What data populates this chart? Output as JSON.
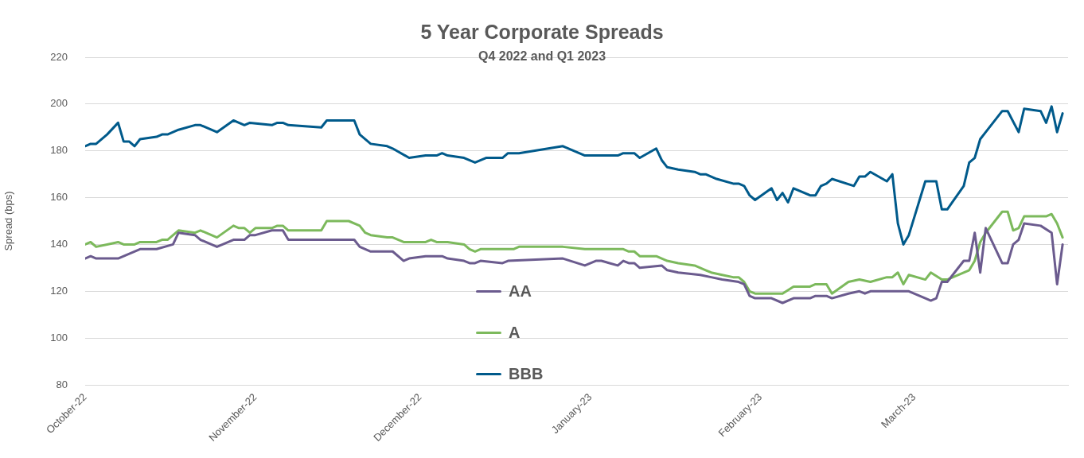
{
  "chart_data": {
    "type": "line",
    "title": "5 Year Corporate Spreads",
    "subtitle": "Q4 2022 and Q1 2023",
    "ylabel": "Spread (bps)",
    "xlim": [
      "2022-10-01",
      "2023-03-29"
    ],
    "xticks": [
      {
        "value": "2022-10-01",
        "label": "October-22"
      },
      {
        "value": "2022-11-01",
        "label": "November-22"
      },
      {
        "value": "2022-12-01",
        "label": "December-22"
      },
      {
        "value": "2023-01-01",
        "label": "January-23"
      },
      {
        "value": "2023-02-01",
        "label": "February-23"
      },
      {
        "value": "2023-03-01",
        "label": "March-23"
      }
    ],
    "ylim": [
      80,
      220
    ],
    "yticks": [
      80,
      100,
      120,
      140,
      160,
      180,
      200,
      220
    ],
    "grid": "y",
    "legend": "bottom",
    "marker": "none",
    "line_style": "solid",
    "series": [
      {
        "name": "AA",
        "color": "#6b5b8e",
        "x": [
          "2022-10-01",
          "2022-10-02",
          "2022-10-03",
          "2022-10-07",
          "2022-10-11",
          "2022-10-14",
          "2022-10-17",
          "2022-10-18",
          "2022-10-21",
          "2022-10-22",
          "2022-10-25",
          "2022-10-28",
          "2022-10-30",
          "2022-10-31",
          "2022-11-01",
          "2022-11-04",
          "2022-11-06",
          "2022-11-07",
          "2022-11-19",
          "2022-11-20",
          "2022-11-22",
          "2022-11-26",
          "2022-11-28",
          "2022-11-29",
          "2022-12-02",
          "2022-12-05",
          "2022-12-06",
          "2022-12-09",
          "2022-12-10",
          "2022-12-11",
          "2022-12-12",
          "2022-12-16",
          "2022-12-17",
          "2022-12-27",
          "2022-12-31",
          "2023-01-02",
          "2023-01-03",
          "2023-01-06",
          "2023-01-07",
          "2023-01-08",
          "2023-01-09",
          "2023-01-10",
          "2023-01-14",
          "2023-01-15",
          "2023-01-17",
          "2023-01-21",
          "2023-01-23",
          "2023-01-25",
          "2023-01-28",
          "2023-01-29",
          "2023-01-30",
          "2023-01-31",
          "2023-02-03",
          "2023-02-05",
          "2023-02-07",
          "2023-02-10",
          "2023-02-11",
          "2023-02-13",
          "2023-02-14",
          "2023-02-17",
          "2023-02-19",
          "2023-02-20",
          "2023-02-21",
          "2023-02-28",
          "2023-03-03",
          "2023-03-04",
          "2023-03-05",
          "2023-03-06",
          "2023-03-07",
          "2023-03-10",
          "2023-03-11",
          "2023-03-12",
          "2023-03-13",
          "2023-03-14",
          "2023-03-17",
          "2023-03-18",
          "2023-03-19",
          "2023-03-20",
          "2023-03-21",
          "2023-03-24",
          "2023-03-26",
          "2023-03-27",
          "2023-03-28"
        ],
        "values": [
          134,
          135,
          134,
          134,
          138,
          138,
          140,
          145,
          144,
          142,
          139,
          142,
          142,
          144,
          144,
          146,
          146,
          142,
          142,
          139,
          137,
          137,
          133,
          134,
          135,
          135,
          134,
          133,
          132,
          132,
          133,
          132,
          133,
          134,
          131,
          133,
          133,
          131,
          133,
          132,
          132,
          130,
          131,
          129,
          128,
          127,
          126,
          125,
          124,
          123,
          118,
          117,
          117,
          115,
          117,
          117,
          118,
          118,
          117,
          119,
          120,
          119,
          120,
          120,
          117,
          116,
          117,
          124,
          124,
          133,
          133,
          145,
          128,
          147,
          132,
          132,
          140,
          142,
          149,
          148,
          145,
          123,
          140
        ]
      },
      {
        "name": "A",
        "color": "#7cb95c",
        "x": [
          "2022-10-01",
          "2022-10-02",
          "2022-10-03",
          "2022-10-05",
          "2022-10-07",
          "2022-10-08",
          "2022-10-10",
          "2022-10-11",
          "2022-10-14",
          "2022-10-15",
          "2022-10-16",
          "2022-10-18",
          "2022-10-21",
          "2022-10-22",
          "2022-10-25",
          "2022-10-28",
          "2022-10-29",
          "2022-10-30",
          "2022-10-31",
          "2022-11-01",
          "2022-11-04",
          "2022-11-05",
          "2022-11-06",
          "2022-11-07",
          "2022-11-13",
          "2022-11-14",
          "2022-11-18",
          "2022-11-20",
          "2022-11-21",
          "2022-11-22",
          "2022-11-25",
          "2022-11-26",
          "2022-11-28",
          "2022-12-02",
          "2022-12-03",
          "2022-12-04",
          "2022-12-06",
          "2022-12-09",
          "2022-12-10",
          "2022-12-11",
          "2022-12-12",
          "2022-12-18",
          "2022-12-19",
          "2022-12-27",
          "2022-12-31",
          "2023-01-07",
          "2023-01-08",
          "2023-01-09",
          "2023-01-10",
          "2023-01-13",
          "2023-01-15",
          "2023-01-17",
          "2023-01-20",
          "2023-01-22",
          "2023-01-23",
          "2023-01-25",
          "2023-01-27",
          "2023-01-28",
          "2023-01-29",
          "2023-01-30",
          "2023-01-31",
          "2023-02-04",
          "2023-02-05",
          "2023-02-07",
          "2023-02-10",
          "2023-02-11",
          "2023-02-13",
          "2023-02-14",
          "2023-02-17",
          "2023-02-19",
          "2023-02-21",
          "2023-02-24",
          "2023-02-25",
          "2023-02-26",
          "2023-02-27",
          "2023-02-28",
          "2023-03-03",
          "2023-03-04",
          "2023-03-06",
          "2023-03-07",
          "2023-03-11",
          "2023-03-12",
          "2023-03-13",
          "2023-03-14",
          "2023-03-17",
          "2023-03-18",
          "2023-03-19",
          "2023-03-20",
          "2023-03-21",
          "2023-03-25",
          "2023-03-26",
          "2023-03-27",
          "2023-03-28"
        ],
        "values": [
          140,
          141,
          139,
          140,
          141,
          140,
          140,
          141,
          141,
          142,
          142,
          146,
          145,
          146,
          143,
          148,
          147,
          147,
          145,
          147,
          147,
          148,
          148,
          146,
          146,
          150,
          150,
          148,
          145,
          144,
          143,
          143,
          141,
          141,
          142,
          141,
          141,
          140,
          138,
          137,
          138,
          138,
          139,
          139,
          138,
          138,
          137,
          137,
          135,
          135,
          133,
          132,
          131,
          129,
          128,
          127,
          126,
          126,
          124,
          120,
          119,
          119,
          119,
          122,
          122,
          123,
          123,
          119,
          124,
          125,
          124,
          126,
          126,
          128,
          123,
          127,
          125,
          128,
          125,
          125,
          129,
          133,
          141,
          145,
          154,
          154,
          146,
          147,
          152,
          152,
          153,
          149,
          143
        ]
      },
      {
        "name": "BBB",
        "color": "#005a8b",
        "x": [
          "2022-10-01",
          "2022-10-02",
          "2022-10-03",
          "2022-10-05",
          "2022-10-07",
          "2022-10-08",
          "2022-10-09",
          "2022-10-10",
          "2022-10-11",
          "2022-10-14",
          "2022-10-15",
          "2022-10-16",
          "2022-10-18",
          "2022-10-21",
          "2022-10-22",
          "2022-10-25",
          "2022-10-28",
          "2022-10-30",
          "2022-10-31",
          "2022-11-04",
          "2022-11-05",
          "2022-11-06",
          "2022-11-07",
          "2022-11-13",
          "2022-11-14",
          "2022-11-19",
          "2022-11-20",
          "2022-11-22",
          "2022-11-25",
          "2022-11-26",
          "2022-11-29",
          "2022-12-02",
          "2022-12-04",
          "2022-12-05",
          "2022-12-06",
          "2022-12-09",
          "2022-12-11",
          "2022-12-13",
          "2022-12-16",
          "2022-12-17",
          "2022-12-19",
          "2022-12-27",
          "2022-12-31",
          "2023-01-06",
          "2023-01-07",
          "2023-01-09",
          "2023-01-10",
          "2023-01-13",
          "2023-01-14",
          "2023-01-15",
          "2023-01-17",
          "2023-01-20",
          "2023-01-21",
          "2023-01-22",
          "2023-01-24",
          "2023-01-27",
          "2023-01-28",
          "2023-01-29",
          "2023-01-30",
          "2023-01-31",
          "2023-02-03",
          "2023-02-04",
          "2023-02-05",
          "2023-02-06",
          "2023-02-07",
          "2023-02-10",
          "2023-02-11",
          "2023-02-12",
          "2023-02-13",
          "2023-02-14",
          "2023-02-18",
          "2023-02-19",
          "2023-02-20",
          "2023-02-21",
          "2023-02-24",
          "2023-02-25",
          "2023-02-26",
          "2023-02-27",
          "2023-02-28",
          "2023-03-03",
          "2023-03-05",
          "2023-03-06",
          "2023-03-07",
          "2023-03-10",
          "2023-03-11",
          "2023-03-12",
          "2023-03-13",
          "2023-03-14",
          "2023-03-17",
          "2023-03-18",
          "2023-03-20",
          "2023-03-21",
          "2023-03-24",
          "2023-03-25",
          "2023-03-26",
          "2023-03-27",
          "2023-03-28"
        ],
        "values": [
          182,
          183,
          183,
          187,
          192,
          184,
          184,
          182,
          185,
          186,
          187,
          187,
          189,
          191,
          191,
          188,
          193,
          191,
          192,
          191,
          192,
          192,
          191,
          190,
          193,
          193,
          187,
          183,
          182,
          181,
          177,
          178,
          178,
          179,
          178,
          177,
          175,
          177,
          177,
          179,
          179,
          182,
          178,
          178,
          179,
          179,
          177,
          181,
          176,
          173,
          172,
          171,
          170,
          170,
          168,
          166,
          166,
          165,
          161,
          159,
          164,
          159,
          162,
          158,
          164,
          161,
          161,
          165,
          166,
          168,
          165,
          169,
          169,
          171,
          167,
          170,
          149,
          140,
          144,
          167,
          167,
          155,
          155,
          165,
          175,
          177,
          185,
          188,
          197,
          197,
          188,
          198,
          197,
          192,
          199,
          188,
          196
        ]
      }
    ]
  }
}
